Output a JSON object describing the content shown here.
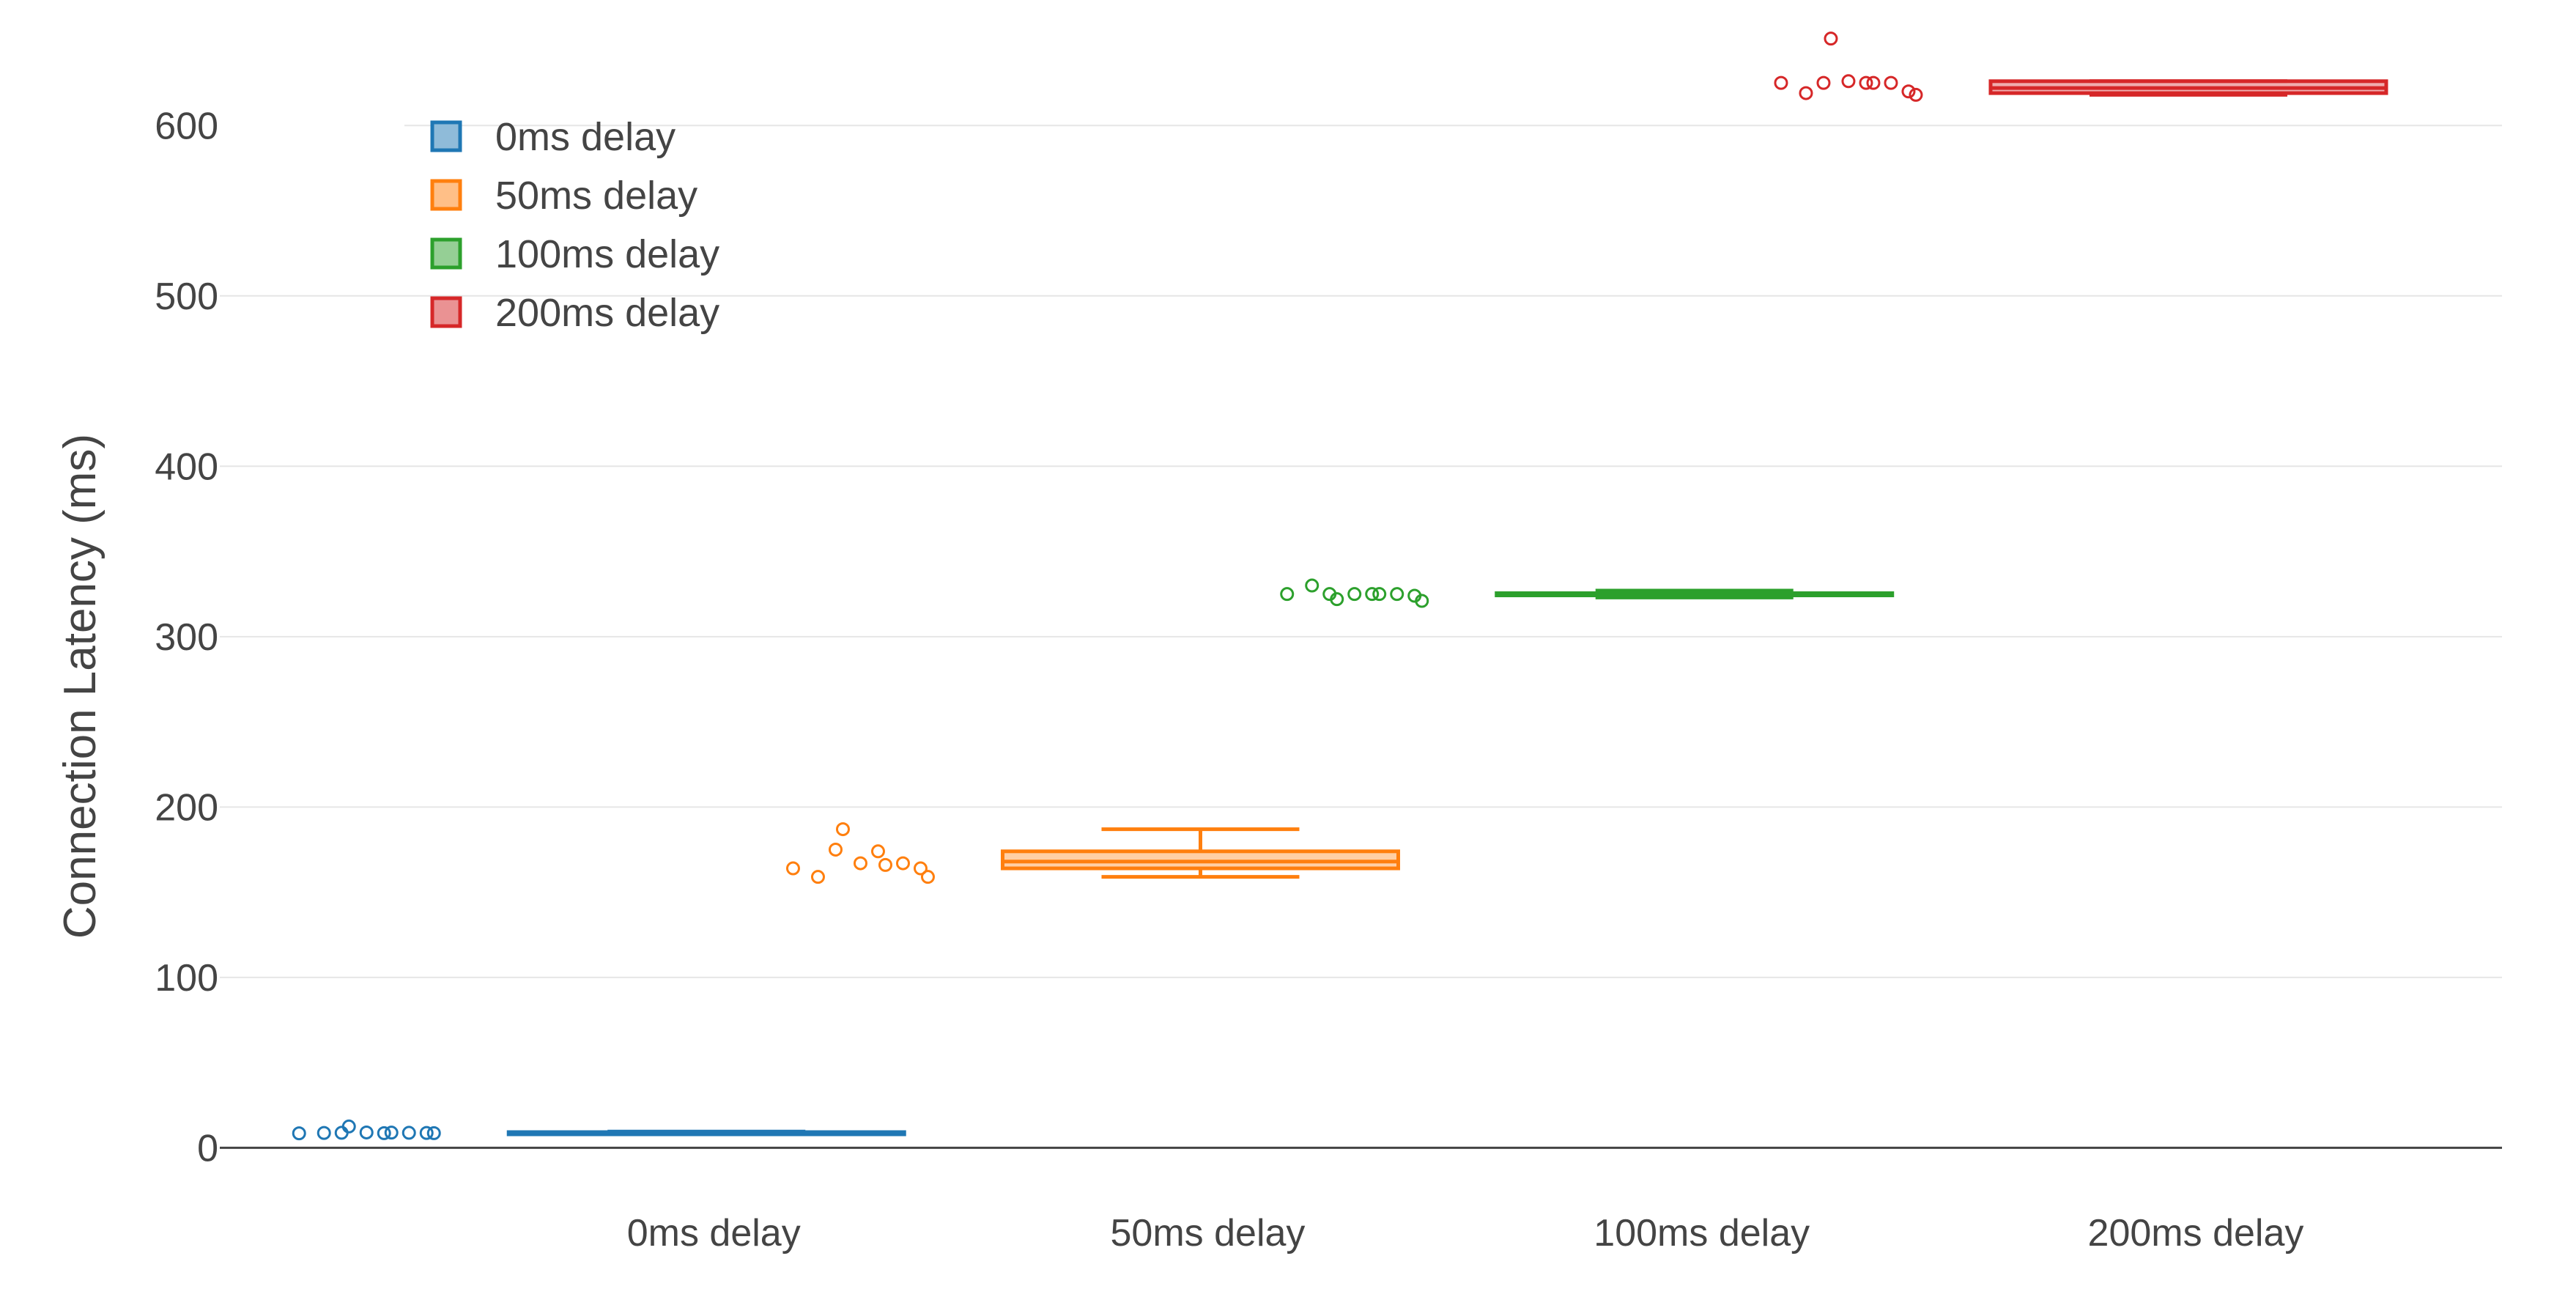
{
  "chart_data": {
    "type": "box",
    "title": "",
    "xlabel": "",
    "ylabel": "Connection Latency (ms)",
    "ylim": [
      -5,
      650
    ],
    "yticks": [
      0,
      100,
      200,
      300,
      400,
      500,
      600
    ],
    "grid": true,
    "legend_position": "top-left",
    "categories": [
      "0ms delay",
      "50ms delay",
      "100ms delay",
      "200ms delay"
    ],
    "series": [
      {
        "name": "0ms delay",
        "color": "#1f77b4",
        "fill": "#8fbbd9",
        "stats": {
          "lower_fence": 8.5,
          "q1": 8.7,
          "median": 9.0,
          "q3": 9.2,
          "upper_fence": 9.5
        },
        "points": [
          8.5,
          8.7,
          12.5,
          8.8,
          9.0,
          8.9,
          8.6,
          8.8,
          8.6,
          8.7
        ]
      },
      {
        "name": "50ms delay",
        "color": "#ff7f0e",
        "fill": "#ffbf87",
        "stats": {
          "lower_fence": 159,
          "q1": 164,
          "median": 168,
          "q3": 174,
          "upper_fence": 187
        },
        "points": [
          164,
          159,
          187,
          175,
          167,
          166,
          174,
          167,
          159,
          164
        ]
      },
      {
        "name": "100ms delay",
        "color": "#2ca02c",
        "fill": "#95cf95",
        "stats": {
          "lower_fence": 323,
          "q1": 324.5,
          "median": 325,
          "q3": 325.5,
          "upper_fence": 327
        },
        "points": [
          325,
          330,
          322,
          325,
          325,
          325,
          325,
          325,
          321,
          324
        ]
      },
      {
        "name": "200ms delay",
        "color": "#d62728",
        "fill": "#ea9293",
        "stats": {
          "lower_fence": 618,
          "q1": 619,
          "median": 622,
          "q3": 626,
          "upper_fence": 626
        },
        "points": [
          625,
          619,
          651,
          625,
          626,
          625,
          625,
          625,
          618,
          620
        ]
      }
    ]
  }
}
